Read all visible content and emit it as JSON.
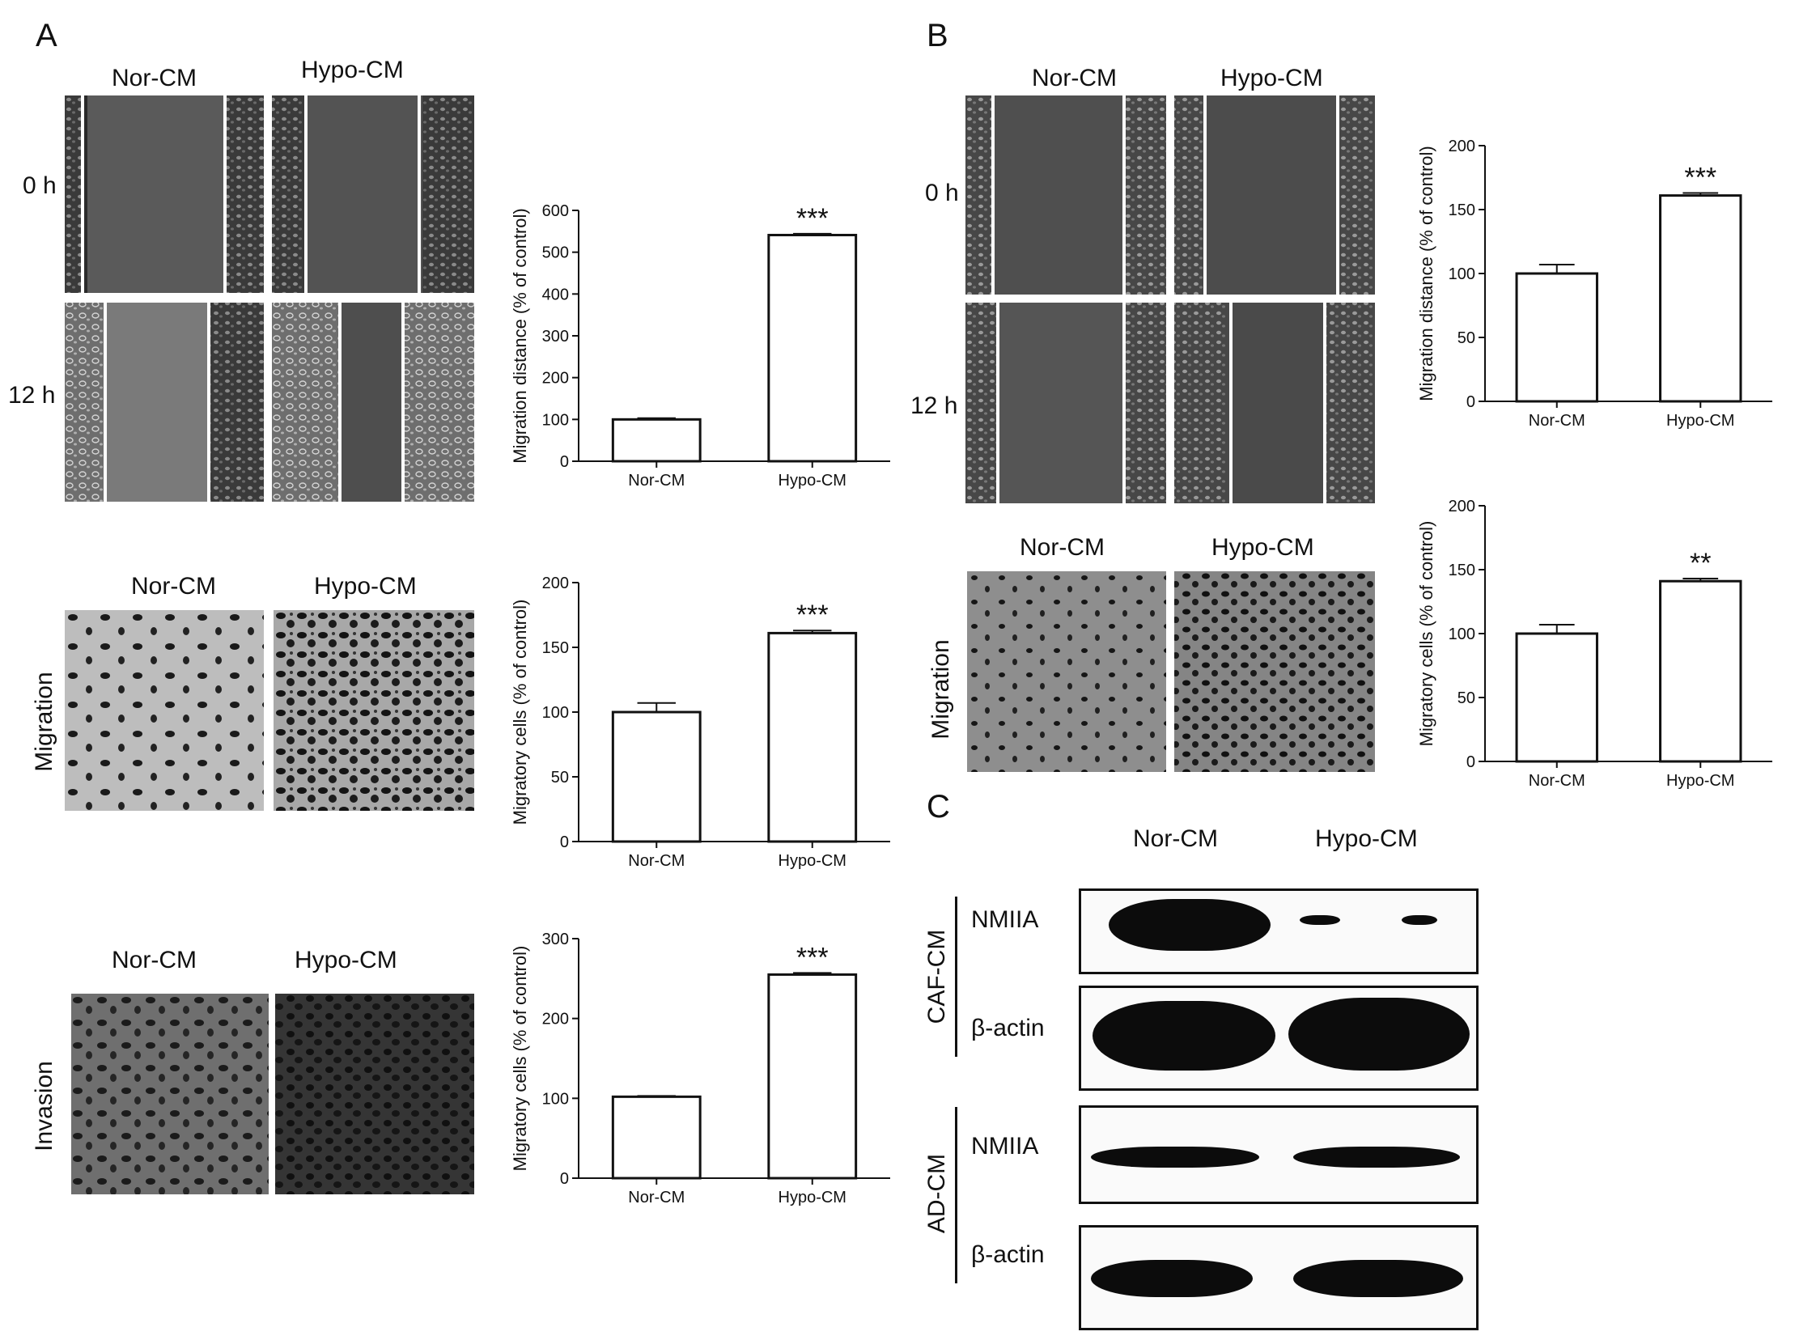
{
  "panels": {
    "A": {
      "letter": "A",
      "wound": {
        "col_labels": [
          "Nor-CM",
          "Hypo-CM"
        ],
        "row_labels": [
          "0 h",
          "12 h"
        ]
      },
      "migration": {
        "col_labels": [
          "Nor-CM",
          "Hypo-CM"
        ],
        "row_label": "Migration"
      },
      "invasion": {
        "col_labels": [
          "Nor-CM",
          "Hypo-CM"
        ],
        "row_label": "Invasion"
      }
    },
    "B": {
      "letter": "B",
      "wound": {
        "col_labels": [
          "Nor-CM",
          "Hypo-CM"
        ],
        "row_labels": [
          "0 h",
          "12 h"
        ]
      },
      "migration": {
        "col_labels": [
          "Nor-CM",
          "Hypo-CM"
        ],
        "row_label": "Migration"
      }
    },
    "C": {
      "letter": "C",
      "col_labels": [
        "Nor-CM",
        "Hypo-CM"
      ],
      "groups": [
        {
          "name": "CAF-CM",
          "rows": [
            "NMIIA",
            "β-actin"
          ]
        },
        {
          "name": "AD-CM",
          "rows": [
            "NMIIA",
            "β-actin"
          ]
        }
      ]
    }
  },
  "chart_data": [
    {
      "id": "A1",
      "type": "bar",
      "categories": [
        "Nor-CM",
        "Hypo-CM"
      ],
      "values": [
        100,
        541
      ],
      "errors": [
        3,
        3
      ],
      "significance": [
        "",
        "***"
      ],
      "ylabel": "Migration distance (% of control)",
      "ylim": [
        0,
        600
      ],
      "yticks": [
        0,
        100,
        200,
        300,
        400,
        500,
        600
      ]
    },
    {
      "id": "A2",
      "type": "bar",
      "categories": [
        "Nor-CM",
        "Hypo-CM"
      ],
      "values": [
        100,
        161
      ],
      "errors": [
        7,
        2
      ],
      "significance": [
        "",
        "***"
      ],
      "ylabel": "Migratory cells (% of control)",
      "ylim": [
        0,
        200
      ],
      "yticks": [
        0,
        50,
        100,
        150,
        200
      ]
    },
    {
      "id": "A3",
      "type": "bar",
      "categories": [
        "Nor-CM",
        "Hypo-CM"
      ],
      "values": [
        102,
        255
      ],
      "errors": [
        1,
        2
      ],
      "significance": [
        "",
        "***"
      ],
      "ylabel": "Migratory cells (% of control)",
      "ylim": [
        0,
        300
      ],
      "yticks": [
        0,
        100,
        200,
        300
      ]
    },
    {
      "id": "B1",
      "type": "bar",
      "categories": [
        "Nor-CM",
        "Hypo-CM"
      ],
      "values": [
        100,
        161
      ],
      "errors": [
        7,
        2
      ],
      "significance": [
        "",
        "***"
      ],
      "ylabel": "Migration distance (% of control)",
      "ylim": [
        0,
        200
      ],
      "yticks": [
        0,
        50,
        100,
        150,
        200
      ]
    },
    {
      "id": "B2",
      "type": "bar",
      "categories": [
        "Nor-CM",
        "Hypo-CM"
      ],
      "values": [
        100,
        141
      ],
      "errors": [
        7,
        2
      ],
      "significance": [
        "",
        "**"
      ],
      "ylabel": "Migratory cells (% of control)",
      "ylim": [
        0,
        200
      ],
      "yticks": [
        0,
        50,
        100,
        150,
        200
      ]
    }
  ]
}
